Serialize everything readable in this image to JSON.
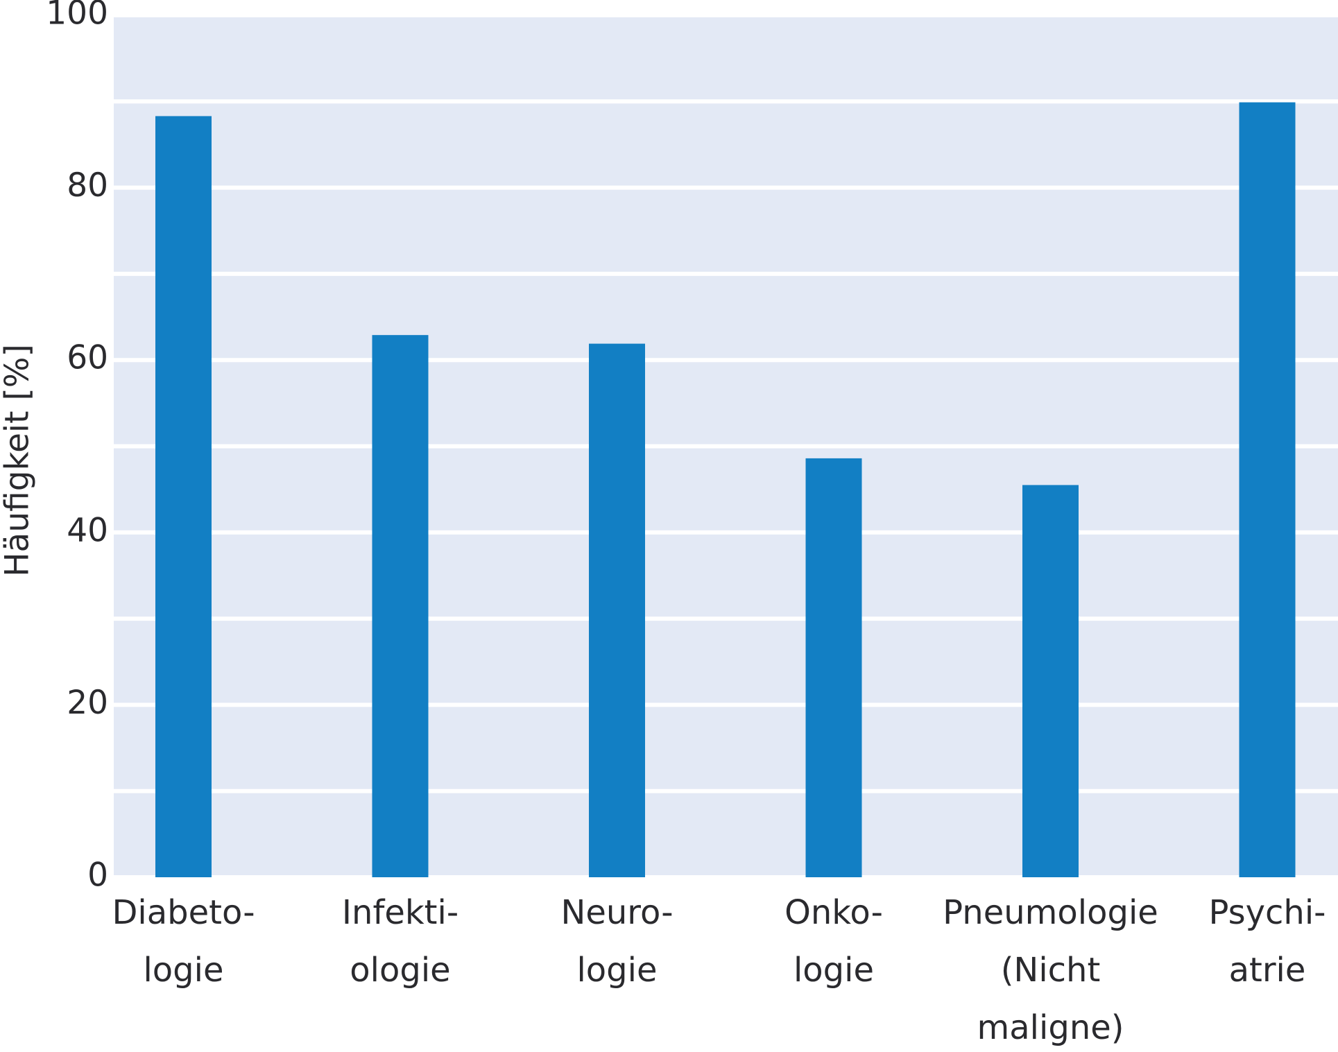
{
  "chart_data": {
    "type": "bar",
    "y_label": "Häufigkeit [%]",
    "categories": [
      [
        "Diabeto-",
        "logie"
      ],
      [
        "Infekti-",
        "ologie"
      ],
      [
        "Neuro-",
        "logie"
      ],
      [
        "Onko-",
        "logie"
      ],
      [
        "Pneumologie",
        "(Nicht",
        "maligne)"
      ],
      [
        "Psychi-",
        "atrie"
      ]
    ],
    "values": [
      88.3,
      62.9,
      61.9,
      48.6,
      45.5,
      89.9
    ],
    "color": "#127fc4",
    "ylim": [
      0,
      100
    ],
    "yticks": [
      0,
      20,
      40,
      60,
      80,
      100
    ],
    "minor_yticks": [
      10,
      30,
      50,
      70,
      90
    ],
    "grid": true
  }
}
